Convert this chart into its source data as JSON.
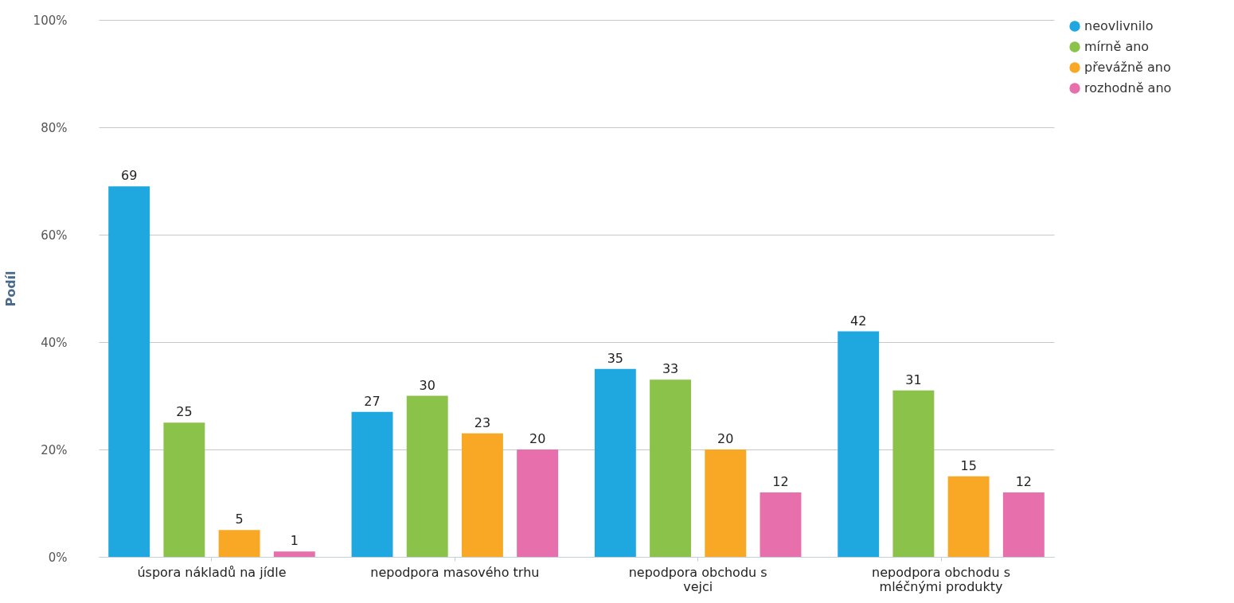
{
  "chart_data": {
    "type": "bar",
    "ylabel": "Podíl",
    "categories": [
      "úspora nákladů na jídle",
      "nepodpora masového trhu",
      "nepodpora obchodu s vejci",
      "nepodpora obchodu s mléčnými produkty"
    ],
    "series": [
      {
        "name": "neovlivnilo",
        "color": "#1fa8e0",
        "values": [
          69,
          27,
          35,
          42
        ]
      },
      {
        "name": "mírně ano",
        "color": "#8bc34a",
        "values": [
          25,
          30,
          33,
          31
        ]
      },
      {
        "name": "převážně ano",
        "color": "#f9a825",
        "values": [
          5,
          23,
          20,
          15
        ]
      },
      {
        "name": "rozhodně ano",
        "color": "#e76fab",
        "values": [
          1,
          20,
          12,
          12
        ]
      }
    ],
    "ylim": [
      0,
      100
    ],
    "yticks": [
      {
        "value": 0,
        "label": "0%"
      },
      {
        "value": 20,
        "label": "20%"
      },
      {
        "value": 40,
        "label": "40%"
      },
      {
        "value": 60,
        "label": "60%"
      },
      {
        "value": 80,
        "label": "80%"
      },
      {
        "value": 100,
        "label": "100%"
      }
    ],
    "grid": "y",
    "legend": "right",
    "data_labels": true
  }
}
